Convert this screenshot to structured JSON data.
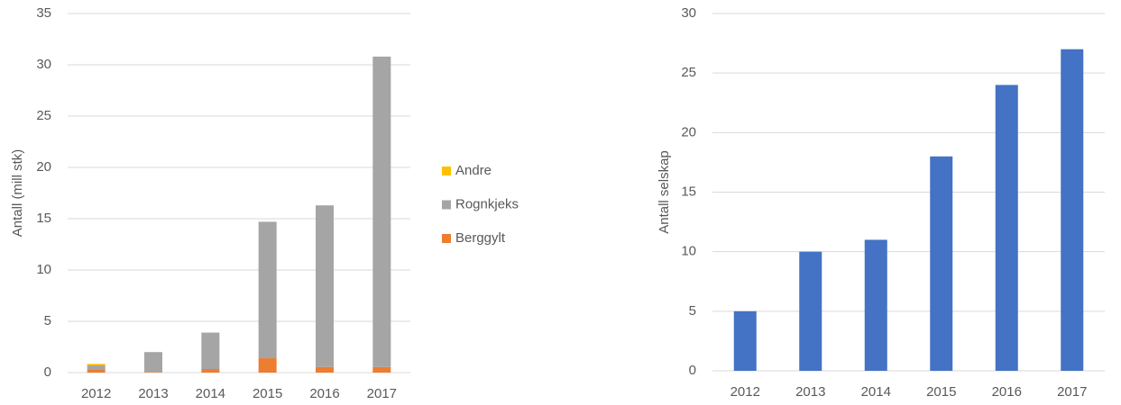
{
  "chart_data": [
    {
      "type": "bar",
      "stacked": true,
      "y_label": "Antall (mill stk)",
      "categories": [
        "2012",
        "2013",
        "2014",
        "2015",
        "2016",
        "2017"
      ],
      "series": [
        {
          "name": "Berggylt",
          "color": "#ed7d31",
          "values": [
            0.3,
            0.05,
            0.35,
            1.4,
            0.55,
            0.55
          ]
        },
        {
          "name": "Rognkjeks",
          "color": "#a5a5a5",
          "values": [
            0.4,
            1.95,
            3.55,
            13.3,
            15.75,
            30.25
          ]
        },
        {
          "name": "Andre",
          "color": "#ffc000",
          "values": [
            0.15,
            0,
            0,
            0,
            0,
            0
          ]
        }
      ],
      "ylim": [
        0,
        35
      ],
      "yticks": [
        0,
        5,
        10,
        15,
        20,
        25,
        30,
        35
      ],
      "grid": true,
      "legend": "right"
    },
    {
      "type": "bar",
      "y_label": "Antall selskap",
      "categories": [
        "2012",
        "2013",
        "2014",
        "2015",
        "2016",
        "2017"
      ],
      "values": [
        5,
        10,
        11,
        18,
        24,
        27
      ],
      "color": "#4472c4",
      "ylim": [
        0,
        30
      ],
      "yticks": [
        0,
        5,
        10,
        15,
        20,
        25,
        30
      ],
      "grid": true
    }
  ]
}
